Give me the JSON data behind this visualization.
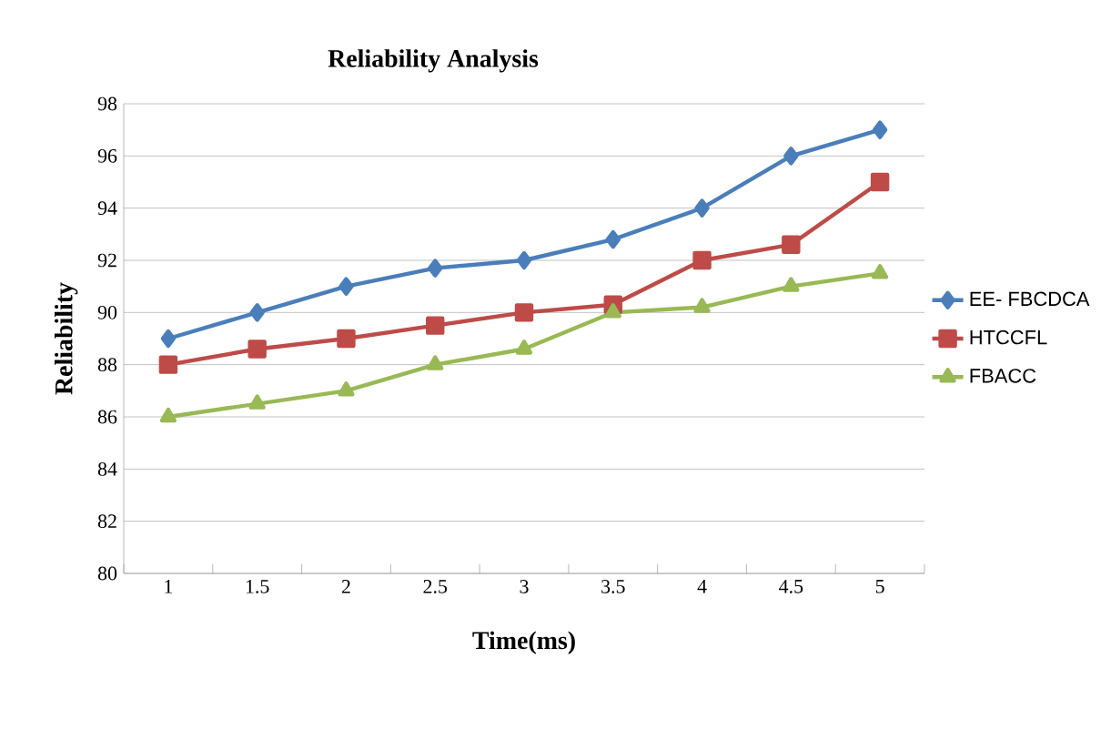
{
  "chart_data": {
    "type": "line",
    "title": "Reliability Analysis",
    "xlabel": "Time(ms)",
    "ylabel": "Reliability",
    "categories": [
      "1",
      "1.5",
      "2",
      "2.5",
      "3",
      "3.5",
      "4",
      "4.5",
      "5"
    ],
    "series": [
      {
        "name": "EE- FBCDCA",
        "color": "#4a7ebb",
        "marker": "diamond",
        "values": [
          89,
          90,
          91,
          91.7,
          92,
          92.8,
          94,
          96,
          97
        ]
      },
      {
        "name": "HTCCFL",
        "color": "#be4b48",
        "marker": "square",
        "values": [
          88,
          88.6,
          89,
          89.5,
          90,
          90.3,
          92,
          92.6,
          95
        ]
      },
      {
        "name": "FBACC",
        "color": "#98b954",
        "marker": "triangle",
        "values": [
          86,
          86.5,
          87,
          88,
          88.6,
          90,
          90.2,
          91,
          91.5
        ]
      }
    ],
    "ylim": [
      80,
      98
    ],
    "yticks": [
      80,
      82,
      84,
      86,
      88,
      90,
      92,
      94,
      96,
      98
    ],
    "grid": "y",
    "legend": "right"
  }
}
